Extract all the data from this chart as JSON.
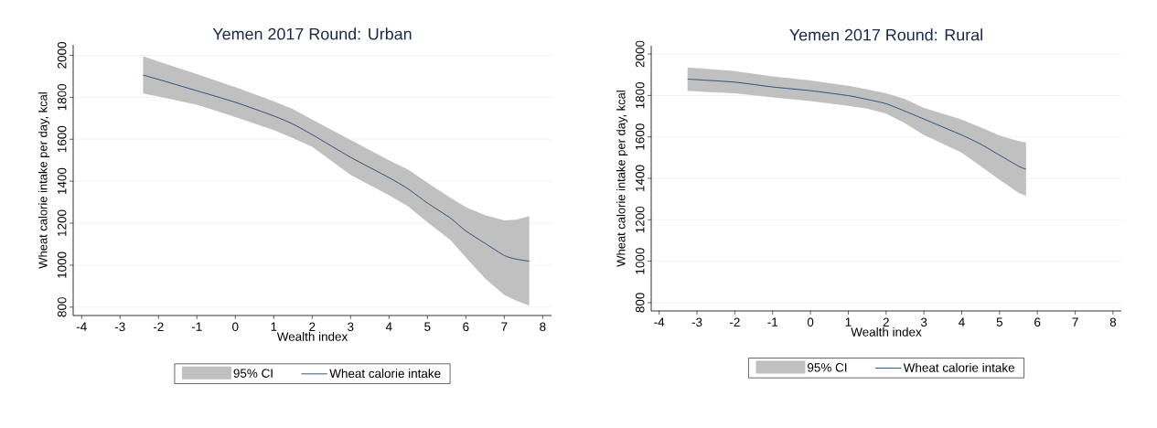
{
  "chart_data": [
    {
      "type": "line",
      "title": "Yemen 2017 Round: Urban",
      "xlabel": "Wealth index",
      "ylabel": "Wheat calorie intake per day, kcal",
      "xlim": [
        -4.22,
        8.23
      ],
      "ylim": [
        760,
        2050
      ],
      "xticks": [
        -4,
        -3,
        -2,
        -1,
        0,
        1,
        2,
        3,
        4,
        5,
        6,
        7,
        8
      ],
      "yticks": [
        800,
        1000,
        1200,
        1400,
        1600,
        1800,
        2000
      ],
      "grid": "y",
      "legend": "bottom",
      "annotations": [
        "95% CI"
      ],
      "series": [
        {
          "name": "Wheat calorie intake",
          "color": "#1a476f",
          "x": [
            -2.4,
            -2,
            -1,
            0,
            1,
            1.5,
            2,
            3,
            4,
            4.5,
            5,
            5.6,
            6,
            6.5,
            7,
            7.3,
            7.65
          ],
          "values": [
            1906,
            1885,
            1831,
            1776,
            1711,
            1672,
            1622,
            1514,
            1417,
            1363,
            1296,
            1224,
            1163,
            1104,
            1046,
            1029,
            1019
          ],
          "lower": [
            1818,
            1804,
            1764,
            1706,
            1644,
            1606,
            1564,
            1430,
            1333,
            1280,
            1204,
            1120,
            1037,
            937,
            858,
            832,
            807
          ],
          "upper": [
            1995,
            1970,
            1910,
            1848,
            1781,
            1744,
            1694,
            1597,
            1500,
            1455,
            1393,
            1321,
            1276,
            1238,
            1213,
            1216,
            1233
          ]
        }
      ]
    },
    {
      "type": "line",
      "title": "Yemen 2017 Round: Rural",
      "xlabel": "Wealth index",
      "ylabel": "Wheat calorie intake per day, kcal",
      "xlim": [
        -4.21,
        8.22
      ],
      "ylim": [
        760,
        2040
      ],
      "xticks": [
        -4,
        -3,
        -2,
        -1,
        0,
        1,
        2,
        3,
        4,
        5,
        6,
        7,
        8
      ],
      "yticks": [
        800,
        1000,
        1200,
        1400,
        1600,
        1800,
        2000
      ],
      "grid": "y",
      "legend": "bottom",
      "annotations": [
        "95% CI"
      ],
      "series": [
        {
          "name": "Wheat calorie intake",
          "color": "#1a476f",
          "x": [
            -3.25,
            -2,
            -1,
            0,
            1,
            1.5,
            2,
            2.5,
            3,
            4,
            4.5,
            5,
            5.5,
            5.7
          ],
          "values": [
            1879,
            1864,
            1841,
            1823,
            1799,
            1781,
            1760,
            1724,
            1686,
            1609,
            1565,
            1512,
            1459,
            1444
          ],
          "lower": [
            1822,
            1811,
            1791,
            1773,
            1750,
            1736,
            1712,
            1666,
            1609,
            1524,
            1459,
            1393,
            1331,
            1315
          ],
          "upper": [
            1935,
            1917,
            1892,
            1872,
            1847,
            1829,
            1810,
            1783,
            1740,
            1684,
            1646,
            1606,
            1580,
            1573
          ]
        }
      ]
    }
  ]
}
